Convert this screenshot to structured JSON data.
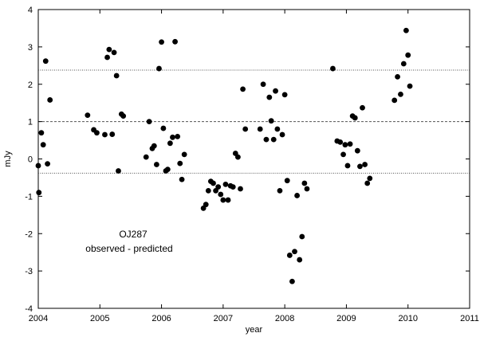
{
  "chart_data": {
    "type": "scatter",
    "xlabel": "year",
    "ylabel": "mJy",
    "xlim": [
      2004,
      2011
    ],
    "ylim": [
      -4,
      4
    ],
    "xticks": [
      "2004",
      "2005",
      "2006",
      "2007",
      "2008",
      "2009",
      "2010",
      "2011"
    ],
    "yticks": [
      "-4",
      "-3",
      "-2",
      "-1",
      "0",
      "1",
      "2",
      "3",
      "4"
    ],
    "grid": false,
    "annotations": [
      "OJ287",
      "observed - predicted"
    ],
    "reference_lines": [
      {
        "y": 2.38,
        "style": "dotted"
      },
      {
        "y": 1.0,
        "style": "dashed"
      },
      {
        "y": -0.38,
        "style": "dotted"
      }
    ],
    "colors": {
      "points": "#000000",
      "axes": "#000000",
      "lines": "#555555"
    },
    "series": [
      {
        "points": [
          [
            2004.0,
            -0.18
          ],
          [
            2004.01,
            -0.9
          ],
          [
            2004.05,
            0.7
          ],
          [
            2004.08,
            0.38
          ],
          [
            2004.12,
            2.62
          ],
          [
            2004.15,
            -0.13
          ],
          [
            2004.19,
            1.58
          ],
          [
            2004.8,
            1.17
          ],
          [
            2004.9,
            0.78
          ],
          [
            2004.95,
            0.7
          ],
          [
            2005.08,
            0.65
          ],
          [
            2005.12,
            2.72
          ],
          [
            2005.15,
            2.93
          ],
          [
            2005.2,
            0.66
          ],
          [
            2005.23,
            2.85
          ],
          [
            2005.27,
            2.23
          ],
          [
            2005.3,
            -0.32
          ],
          [
            2005.35,
            1.2
          ],
          [
            2005.38,
            1.15
          ],
          [
            2005.75,
            0.05
          ],
          [
            2005.8,
            1.0
          ],
          [
            2005.85,
            0.28
          ],
          [
            2005.88,
            0.35
          ],
          [
            2005.92,
            -0.15
          ],
          [
            2005.96,
            2.42
          ],
          [
            2006.0,
            3.13
          ],
          [
            2006.03,
            0.82
          ],
          [
            2006.07,
            -0.32
          ],
          [
            2006.1,
            -0.28
          ],
          [
            2006.14,
            0.42
          ],
          [
            2006.18,
            0.58
          ],
          [
            2006.22,
            3.14
          ],
          [
            2006.26,
            0.6
          ],
          [
            2006.3,
            -0.12
          ],
          [
            2006.33,
            -0.55
          ],
          [
            2006.37,
            0.12
          ],
          [
            2006.68,
            -1.32
          ],
          [
            2006.72,
            -1.22
          ],
          [
            2006.76,
            -0.85
          ],
          [
            2006.8,
            -0.6
          ],
          [
            2006.84,
            -0.65
          ],
          [
            2006.88,
            -0.85
          ],
          [
            2006.92,
            -0.75
          ],
          [
            2006.96,
            -0.95
          ],
          [
            2007.0,
            -1.1
          ],
          [
            2007.04,
            -0.68
          ],
          [
            2007.08,
            -1.1
          ],
          [
            2007.12,
            -0.72
          ],
          [
            2007.16,
            -0.75
          ],
          [
            2007.2,
            0.15
          ],
          [
            2007.24,
            0.05
          ],
          [
            2007.28,
            -0.8
          ],
          [
            2007.32,
            1.87
          ],
          [
            2007.36,
            0.8
          ],
          [
            2007.6,
            0.8
          ],
          [
            2007.65,
            2.0
          ],
          [
            2007.7,
            0.52
          ],
          [
            2007.75,
            1.65
          ],
          [
            2007.78,
            1.02
          ],
          [
            2007.82,
            0.52
          ],
          [
            2007.85,
            1.82
          ],
          [
            2007.88,
            0.8
          ],
          [
            2007.92,
            -0.85
          ],
          [
            2007.96,
            0.65
          ],
          [
            2008.0,
            1.72
          ],
          [
            2008.04,
            -0.58
          ],
          [
            2008.08,
            -2.58
          ],
          [
            2008.12,
            -3.28
          ],
          [
            2008.16,
            -2.48
          ],
          [
            2008.2,
            -0.98
          ],
          [
            2008.24,
            -2.7
          ],
          [
            2008.28,
            -2.08
          ],
          [
            2008.32,
            -0.65
          ],
          [
            2008.36,
            -0.8
          ],
          [
            2008.78,
            2.42
          ],
          [
            2008.85,
            0.48
          ],
          [
            2008.9,
            0.45
          ],
          [
            2008.95,
            0.12
          ],
          [
            2008.98,
            0.38
          ],
          [
            2009.02,
            -0.18
          ],
          [
            2009.06,
            0.4
          ],
          [
            2009.1,
            1.15
          ],
          [
            2009.14,
            1.1
          ],
          [
            2009.18,
            0.22
          ],
          [
            2009.22,
            -0.2
          ],
          [
            2009.26,
            1.37
          ],
          [
            2009.3,
            -0.15
          ],
          [
            2009.34,
            -0.65
          ],
          [
            2009.38,
            -0.52
          ],
          [
            2009.78,
            1.57
          ],
          [
            2009.83,
            2.2
          ],
          [
            2009.88,
            1.73
          ],
          [
            2009.93,
            2.55
          ],
          [
            2009.97,
            3.44
          ],
          [
            2010.0,
            2.78
          ],
          [
            2010.03,
            1.95
          ]
        ]
      }
    ]
  }
}
